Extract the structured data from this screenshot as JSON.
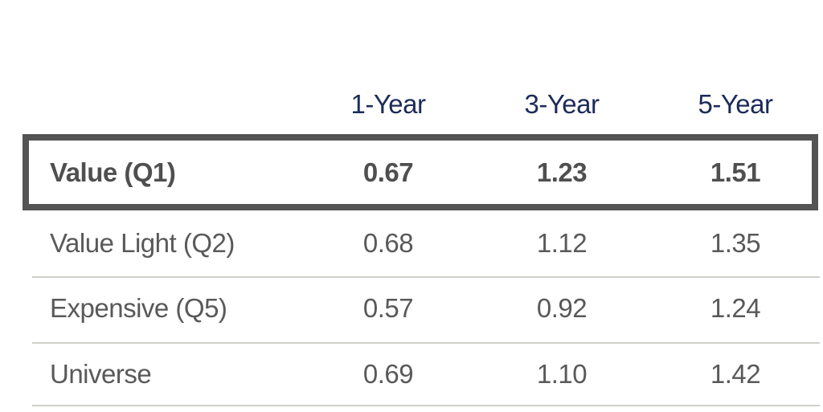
{
  "chart_data": {
    "type": "table",
    "columns": [
      "1-Year",
      "3-Year",
      "5-Year"
    ],
    "rows": [
      {
        "label": "Value (Q1)",
        "values": [
          "0.67",
          "1.23",
          "1.51"
        ],
        "highlighted": true
      },
      {
        "label": "Value Light (Q2)",
        "values": [
          "0.68",
          "1.12",
          "1.35"
        ],
        "highlighted": false
      },
      {
        "label": "Expensive (Q5)",
        "values": [
          "0.57",
          "0.92",
          "1.24"
        ],
        "highlighted": false
      },
      {
        "label": "Universe",
        "values": [
          "0.69",
          "1.10",
          "1.42"
        ],
        "highlighted": false
      }
    ],
    "layout_hints": {
      "value_alignment": "center",
      "highlight_style": "thick-border-box-around-first-row",
      "row_separators": "thin-light-gray-lines",
      "legend": "none",
      "grid": "off"
    }
  },
  "colors": {
    "header_text": "#1c2b5a",
    "body_text": "#595959",
    "highlight_text": "#4f4f4f",
    "highlight_border": "#545454",
    "divider": "#d1cfc8",
    "background": "#ffffff"
  }
}
